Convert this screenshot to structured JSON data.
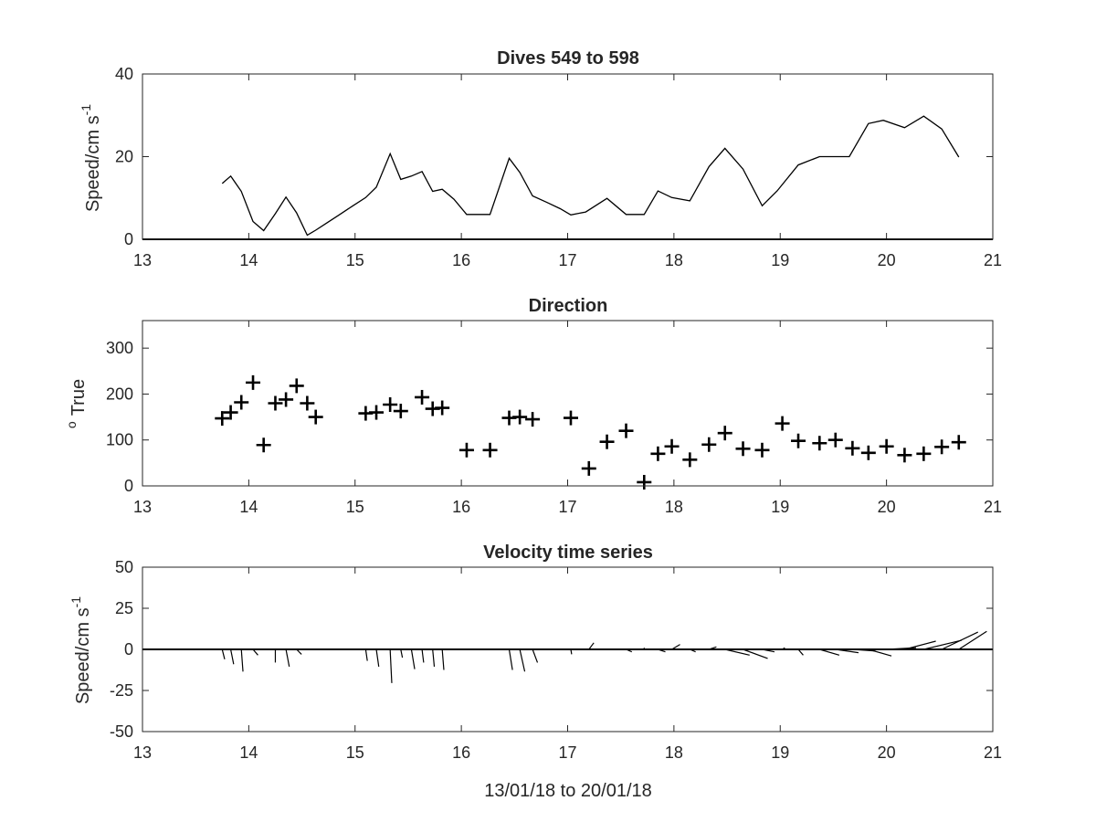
{
  "chart_data": [
    {
      "type": "line",
      "title": "Dives 549 to 598",
      "xlabel": "",
      "ylabel": "Speed/cm s",
      "ylabel_superscript": "-1",
      "xlim": [
        13,
        21
      ],
      "ylim": [
        0,
        40
      ],
      "xticks": [
        "13",
        "14",
        "15",
        "16",
        "17",
        "18",
        "19",
        "20",
        "21"
      ],
      "yticks": [
        "0",
        "20",
        "40"
      ],
      "grid": false,
      "x": [
        13.75,
        13.83,
        13.93,
        14.04,
        14.14,
        14.25,
        14.35,
        14.45,
        14.55,
        14.63,
        14.73,
        14.85,
        14.98,
        15.1,
        15.2,
        15.33,
        15.43,
        15.53,
        15.63,
        15.73,
        15.82,
        15.93,
        16.05,
        16.15,
        16.27,
        16.45,
        16.55,
        16.67,
        16.8,
        16.93,
        17.03,
        17.17,
        17.37,
        17.55,
        17.72,
        17.85,
        17.98,
        18.15,
        18.33,
        18.48,
        18.65,
        18.83,
        18.97,
        19.17,
        19.37,
        19.5,
        19.65,
        19.83,
        19.97,
        20.17,
        20.35,
        20.52,
        20.68
      ],
      "values": [
        13.5,
        15.3,
        11.6,
        4.3,
        2.1,
        6.2,
        10.2,
        6.4,
        1.0,
        2.2,
        3.9,
        5.9,
        8.1,
        10.1,
        12.6,
        20.7,
        14.5,
        15.3,
        16.4,
        11.6,
        12.1,
        9.7,
        6.0,
        6.0,
        6.0,
        19.6,
        16.2,
        10.5,
        9.0,
        7.4,
        5.9,
        6.6,
        9.9,
        6.0,
        6.0,
        11.7,
        10.1,
        9.3,
        17.6,
        22.0,
        17.0,
        8.1,
        11.7,
        18.0,
        20.0,
        20.0,
        20.0,
        28.0,
        28.8,
        27.0,
        29.8,
        26.7,
        19.9
      ]
    },
    {
      "type": "scatter",
      "title": "Direction",
      "xlabel": "",
      "ylabel": "True",
      "ylabel_superscript": "o",
      "xlim": [
        13,
        21
      ],
      "ylim": [
        0,
        360
      ],
      "xticks": [
        "13",
        "14",
        "15",
        "16",
        "17",
        "18",
        "19",
        "20",
        "21"
      ],
      "yticks": [
        "0",
        "100",
        "200",
        "300"
      ],
      "marker": "+",
      "grid": false,
      "x": [
        13.75,
        13.83,
        13.93,
        14.04,
        14.14,
        14.25,
        14.35,
        14.45,
        14.55,
        14.63,
        15.1,
        15.2,
        15.33,
        15.43,
        15.63,
        15.73,
        15.82,
        16.05,
        16.27,
        16.45,
        16.55,
        16.67,
        17.03,
        17.2,
        17.37,
        17.55,
        17.72,
        17.85,
        17.98,
        18.15,
        18.33,
        18.48,
        18.65,
        18.83,
        19.02,
        19.17,
        19.37,
        19.52,
        19.68,
        19.83,
        20.0,
        20.17,
        20.35,
        20.52,
        20.68
      ],
      "values": [
        147,
        160,
        182,
        225,
        89,
        180,
        188,
        218,
        180,
        150,
        158,
        160,
        177,
        163,
        193,
        168,
        170,
        78,
        78,
        148,
        150,
        145,
        148,
        38,
        96,
        120,
        8,
        70,
        86,
        57,
        90,
        115,
        81,
        78,
        136,
        98,
        93,
        100,
        82,
        72,
        86,
        67,
        70,
        85,
        95
      ]
    },
    {
      "type": "line",
      "subtype": "stick-vectors",
      "title": "Velocity time series",
      "xlabel": "13/01/18 to 20/01/18",
      "ylabel": "Speed/cm s",
      "ylabel_superscript": "-1",
      "xlim": [
        13,
        21
      ],
      "ylim": [
        -50,
        50
      ],
      "xticks": [
        "13",
        "14",
        "15",
        "16",
        "17",
        "18",
        "19",
        "20",
        "21"
      ],
      "yticks": [
        "-50",
        "-25",
        "0",
        "25",
        "50"
      ],
      "grid": false,
      "x": [
        13.75,
        13.83,
        13.93,
        14.04,
        14.14,
        14.25,
        14.35,
        14.45,
        14.55,
        14.63,
        14.73,
        15.1,
        15.2,
        15.33,
        15.43,
        15.53,
        15.63,
        15.73,
        15.82,
        16.05,
        16.27,
        16.45,
        16.55,
        16.67,
        17.03,
        17.2,
        17.37,
        17.55,
        17.72,
        17.85,
        17.98,
        18.15,
        18.33,
        18.48,
        18.65,
        18.83,
        19.02,
        19.17,
        19.37,
        19.52,
        19.68,
        19.83,
        20.0,
        20.17,
        20.35,
        20.52,
        20.68
      ],
      "u": [
        1.5,
        1.8,
        1.0,
        3.0,
        2.0,
        0.0,
        2.0,
        3.0,
        1.0,
        1.0,
        0.0,
        1.0,
        1.5,
        1.0,
        1.0,
        2.0,
        1.0,
        1.0,
        1.0,
        0.0,
        0.0,
        2.0,
        3.0,
        3.0,
        0.5,
        3.0,
        7.0,
        3.5,
        0.0,
        4.5,
        5.0,
        3.5,
        4.5,
        15.0,
        15.0,
        7.5,
        1.5,
        3.0,
        12.0,
        14.0,
        14.0,
        14.0,
        18.0,
        19.0,
        23.0,
        22.0,
        17.0
      ],
      "v": [
        -6.0,
        -9.0,
        -13.5,
        -3.5,
        0.0,
        -8.0,
        -10.5,
        -3.0,
        0.0,
        0.0,
        0.0,
        -7.0,
        -10.5,
        -20.5,
        -5.0,
        -12.0,
        -8.0,
        -10.5,
        -12.5,
        0.0,
        0.0,
        -12.5,
        -13.5,
        -8.0,
        -3.0,
        4.0,
        0.0,
        -1.5,
        1.0,
        -1.5,
        3.0,
        -1.5,
        1.5,
        -3.5,
        -5.5,
        -1.5,
        1.0,
        -3.5,
        -3.5,
        -2.0,
        -1.0,
        -4.0,
        1.0,
        5.0,
        5.5,
        10.5,
        11.0
      ]
    }
  ]
}
